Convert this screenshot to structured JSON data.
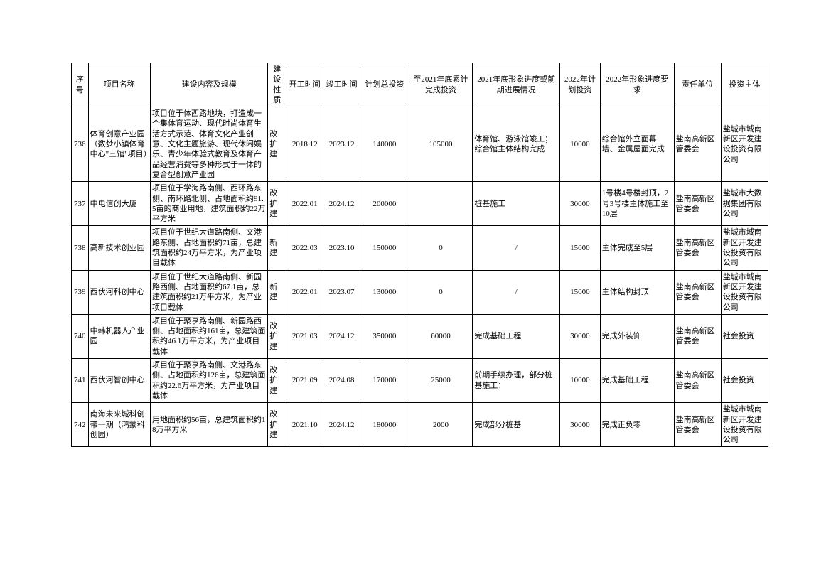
{
  "table": {
    "headers": {
      "seq": "序号",
      "name": "项目名称",
      "content": "建设内容及规模",
      "nature": "建设性质",
      "start": "开工时间",
      "end": "竣工时间",
      "total_invest": "计划总投资",
      "done_2021": "至2021年底累计完成投资",
      "progress_2021": "2021年底形象进度或前期进展情况",
      "plan_2022": "2022年计划投资",
      "req_2022": "2022年形象进度要求",
      "resp": "责任单位",
      "investor": "投资主体"
    },
    "rows": [
      {
        "seq": "736",
        "name": "体育创意产业园（数梦小镇体育中心\"三馆\"项目）",
        "content": "项目位于体西路地块，打造成一个集体育运动、现代时尚体育生活方式示范、体育文化产业创意、文化主题旅游、现代休闲娱乐、青少年体验式教育及体育产品经营消费等多种形式于一体的复合型创意产业园",
        "nature": "改扩建",
        "start": "2018.12",
        "end": "2023.12",
        "total_invest": "140000",
        "done_2021": "105000",
        "progress_2021": "体育馆、游泳馆竣工；综合馆主体结构完成",
        "plan_2022": "10000",
        "req_2022": "综合馆外立面幕墙、金属屋面完成",
        "resp": "盐南高新区管委会",
        "investor": "盐城市城南新区开发建设投资有限公司"
      },
      {
        "seq": "737",
        "name": "中电信创大厦",
        "content": "项目位于学海路南侧、西环路东侧、南环路北侧、占地面积约91.5亩的商业用地，建筑面积约22万平方米",
        "nature": "改扩建",
        "start": "2022.01",
        "end": "2024.12",
        "total_invest": "200000",
        "done_2021": "",
        "progress_2021": "桩基施工",
        "plan_2022": "30000",
        "req_2022": "1号楼4号楼封顶，2号3号楼主体施工至10层",
        "resp": "盐南高新区管委会",
        "investor": "盐城市大数据集团有限公司"
      },
      {
        "seq": "738",
        "name": "高新技术创业园",
        "content": "项目位于世纪大道路南侧、文港路东侧、占地面积约71亩，总建筑面积约24万平方米，为产业项目载体",
        "nature": "新建",
        "start": "2022.03",
        "end": "2023.10",
        "total_invest": "150000",
        "done_2021": "0",
        "progress_2021": "/",
        "plan_2022": "15000",
        "req_2022": "主体完成至5层",
        "resp": "盐南高新区管委会",
        "investor": "盐城市城南新区开发建设投资有限公司"
      },
      {
        "seq": "739",
        "name": "西伏河科创中心",
        "content": "项目位于世纪大道路南侧、新园路西侧、占地面积约67.1亩，总建筑面积约21万平方米，为产业项目载体",
        "nature": "新建",
        "start": "2022.01",
        "end": "2023.07",
        "total_invest": "130000",
        "done_2021": "0",
        "progress_2021": "/",
        "plan_2022": "15000",
        "req_2022": "主体结构封顶",
        "resp": "盐南高新区管委会",
        "investor": "盐城市城南新区开发建设投资有限公司"
      },
      {
        "seq": "740",
        "name": "中韩机器人产业园",
        "content": "项目位于聚亨路南侧、新园路西侧、占地面积约161亩，总建筑面积约46.1万平方米，为产业项目载体",
        "nature": "改扩建",
        "start": "2021.03",
        "end": "2024.12",
        "total_invest": "350000",
        "done_2021": "60000",
        "progress_2021": "完成基础工程",
        "plan_2022": "30000",
        "req_2022": "完成外装饰",
        "resp": "盐南高新区管委会",
        "investor": "社会投资"
      },
      {
        "seq": "741",
        "name": "西伏河智创中心",
        "content": "项目位于聚亨路南侧、文港路东侧、占地面积约126亩，总建筑面积约22.6万平方米，为产业项目载体",
        "nature": "改扩建",
        "start": "2021.09",
        "end": "2024.08",
        "total_invest": "170000",
        "done_2021": "25000",
        "progress_2021": "前期手续办理，部分桩基施工；",
        "plan_2022": "10000",
        "req_2022": "完成基础工程",
        "resp": "盐南高新区管委会",
        "investor": "社会投资"
      },
      {
        "seq": "742",
        "name": "南海未来城科创带一期（鸿蒙科创园）",
        "content": "用地面积约56亩，总建筑面积约18万平方米",
        "nature": "改扩建",
        "start": "2021.10",
        "end": "2024.12",
        "total_invest": "180000",
        "done_2021": "2000",
        "progress_2021": "完成部分桩基",
        "plan_2022": "30000",
        "req_2022": "完成正负零",
        "resp": "盐南高新区管委会",
        "investor": "盐城市城南新区开发建设投资有限公司"
      }
    ],
    "colors": {
      "border": "#000000",
      "background": "#ffffff",
      "text": "#000000"
    },
    "font_size": 11
  }
}
